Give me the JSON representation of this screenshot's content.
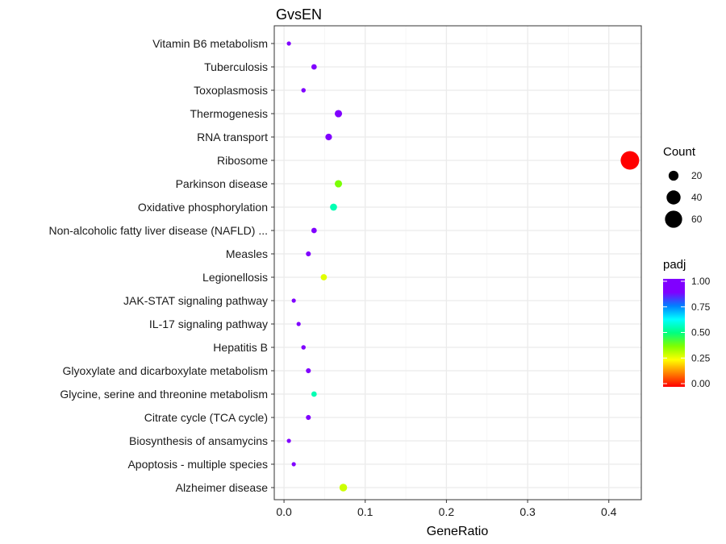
{
  "chart_data": {
    "type": "scatter",
    "title": "GvsEN",
    "xlabel": "GeneRatio",
    "ylabel": "",
    "xlim": [
      -0.012,
      0.44
    ],
    "x_ticks": [
      "0.0",
      "0.1",
      "0.2",
      "0.3",
      "0.4"
    ],
    "x_tick_values": [
      0.0,
      0.1,
      0.2,
      0.3,
      0.4
    ],
    "grid": true,
    "categories": [
      "Vitamin B6 metabolism",
      "Tuberculosis",
      "Toxoplasmosis",
      "Thermogenesis",
      "RNA transport",
      "Ribosome",
      "Parkinson disease",
      "Oxidative phosphorylation",
      "Non-alcoholic fatty liver disease (NAFLD) ...",
      "Measles",
      "Legionellosis",
      "JAK-STAT signaling pathway",
      "IL-17 signaling pathway",
      "Hepatitis B",
      "Glyoxylate and dicarboxylate metabolism",
      "Glycine, serine and threonine metabolism",
      "Citrate cycle (TCA cycle)",
      "Biosynthesis of ansamycins",
      "Apoptosis - multiple species",
      "Alzheimer disease"
    ],
    "points": [
      {
        "category": "Vitamin B6 metabolism",
        "x": 0.006,
        "count": 1,
        "padj": 1.0
      },
      {
        "category": "Tuberculosis",
        "x": 0.037,
        "count": 6,
        "padj": 0.95
      },
      {
        "category": "Toxoplasmosis",
        "x": 0.024,
        "count": 4,
        "padj": 0.97
      },
      {
        "category": "Thermogenesis",
        "x": 0.067,
        "count": 11,
        "padj": 0.92
      },
      {
        "category": "RNA transport",
        "x": 0.055,
        "count": 9,
        "padj": 0.95
      },
      {
        "category": "Ribosome",
        "x": 0.426,
        "count": 70,
        "padj": 0.0
      },
      {
        "category": "Parkinson disease",
        "x": 0.067,
        "count": 11,
        "padj": 0.38
      },
      {
        "category": "Oxidative phosphorylation",
        "x": 0.061,
        "count": 10,
        "padj": 0.55
      },
      {
        "category": "Non-alcoholic fatty liver disease (NAFLD) ...",
        "x": 0.037,
        "count": 6,
        "padj": 0.95
      },
      {
        "category": "Measles",
        "x": 0.03,
        "count": 5,
        "padj": 0.97
      },
      {
        "category": "Legionellosis",
        "x": 0.049,
        "count": 8,
        "padj": 0.28
      },
      {
        "category": "JAK-STAT signaling pathway",
        "x": 0.012,
        "count": 2,
        "padj": 1.0
      },
      {
        "category": "IL-17 signaling pathway",
        "x": 0.018,
        "count": 3,
        "padj": 0.98
      },
      {
        "category": "Hepatitis B",
        "x": 0.024,
        "count": 4,
        "padj": 0.97
      },
      {
        "category": "Glyoxylate and dicarboxylate metabolism",
        "x": 0.03,
        "count": 5,
        "padj": 0.96
      },
      {
        "category": "Glycine, serine and threonine metabolism",
        "x": 0.037,
        "count": 6,
        "padj": 0.55
      },
      {
        "category": "Citrate cycle (TCA cycle)",
        "x": 0.03,
        "count": 5,
        "padj": 0.96
      },
      {
        "category": "Biosynthesis of ansamycins",
        "x": 0.006,
        "count": 1,
        "padj": 1.0
      },
      {
        "category": "Apoptosis - multiple species",
        "x": 0.012,
        "count": 2,
        "padj": 1.0
      },
      {
        "category": "Alzheimer disease",
        "x": 0.073,
        "count": 12,
        "padj": 0.3
      }
    ],
    "legend_size": {
      "title": "Count",
      "values": [
        20,
        40,
        60
      ],
      "labels": [
        "20",
        "40",
        "60"
      ],
      "position": "right"
    },
    "legend_color": {
      "title": "padj",
      "ticks": [
        0.0,
        0.25,
        0.5,
        0.75,
        1.0
      ],
      "labels": [
        "0.00",
        "0.25",
        "0.50",
        "0.75",
        "1.00"
      ],
      "colors": [
        "#ff0000",
        "#ff8000",
        "#ffff00",
        "#80ff00",
        "#00ff80",
        "#00ffff",
        "#0080ff",
        "#8000ff"
      ],
      "position": "right"
    }
  }
}
